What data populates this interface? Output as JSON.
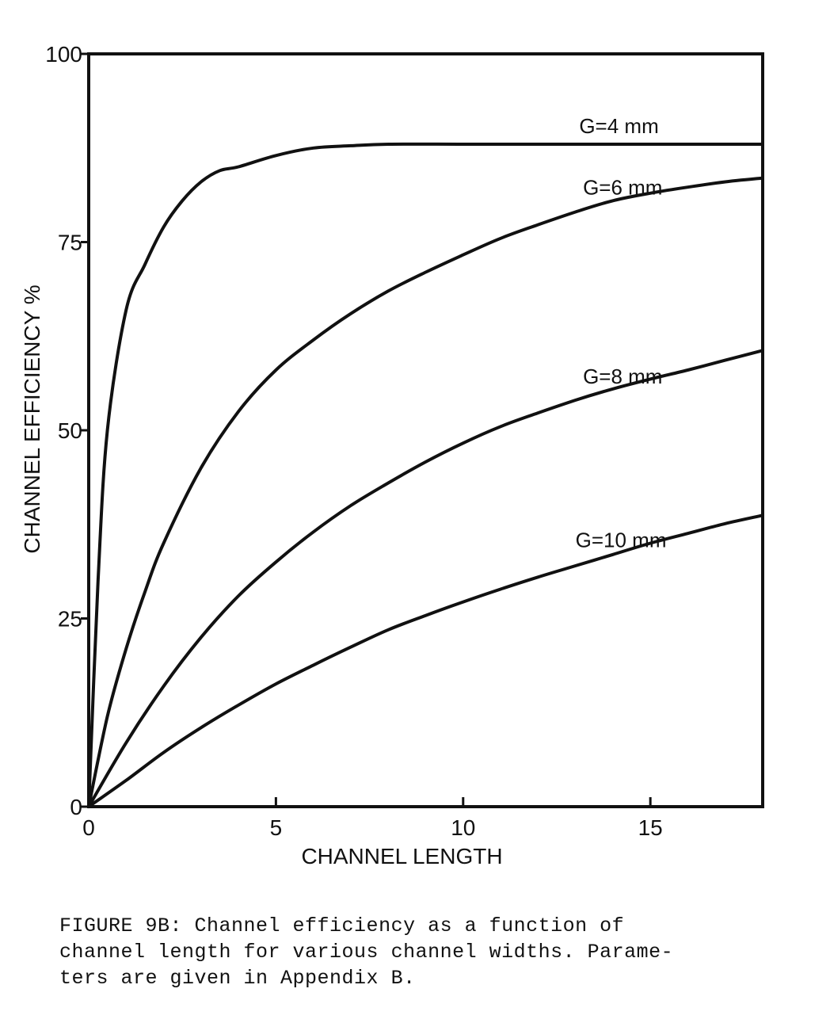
{
  "chart_data": {
    "type": "line",
    "xlabel": "CHANNEL LENGTH",
    "ylabel": "CHANNEL EFFICIENCY %",
    "xlim": [
      0,
      18
    ],
    "ylim": [
      0,
      100
    ],
    "x_ticks": [
      "0",
      "5",
      "10",
      "15"
    ],
    "x_tick_values": [
      0,
      5,
      10,
      15
    ],
    "y_ticks": [
      "0",
      "25",
      "50",
      "75",
      "100"
    ],
    "y_tick_values": [
      0,
      25,
      50,
      75,
      100
    ],
    "grid": false,
    "series": [
      {
        "name": "G=4 mm",
        "x": [
          0,
          0.25,
          0.5,
          1,
          1.5,
          2,
          2.5,
          3,
          3.5,
          4,
          5,
          6,
          7,
          8,
          10,
          12,
          14,
          16,
          18
        ],
        "values": [
          0,
          30,
          50,
          66,
          72,
          77,
          80.5,
          83,
          84.5,
          85,
          86.5,
          87.5,
          87.8,
          88,
          88,
          88,
          88,
          88,
          88
        ]
      },
      {
        "name": "G=6 mm",
        "x": [
          0,
          0.5,
          1,
          1.5,
          2,
          3,
          4,
          5,
          6,
          7,
          8,
          9,
          10,
          11,
          12,
          13,
          14,
          15,
          16,
          17,
          18
        ],
        "values": [
          0,
          12,
          21,
          28.5,
          35,
          45,
          52.5,
          58,
          62,
          65.5,
          68.5,
          71,
          73.3,
          75.5,
          77.3,
          79,
          80.5,
          81.5,
          82.3,
          83,
          83.5
        ]
      },
      {
        "name": "G=8 mm",
        "x": [
          0,
          1,
          2,
          3,
          4,
          5,
          6,
          7,
          8,
          9,
          10,
          11,
          12,
          13,
          14,
          15,
          16,
          17,
          18
        ],
        "values": [
          0,
          8.5,
          16,
          22.5,
          28,
          32.5,
          36.5,
          40,
          43,
          45.8,
          48.3,
          50.5,
          52.3,
          54,
          55.5,
          56.8,
          58,
          59.3,
          60.6
        ]
      },
      {
        "name": "G=10 mm",
        "x": [
          0,
          1,
          2,
          3,
          4,
          5,
          6,
          7,
          8,
          9,
          10,
          11,
          12,
          13,
          14,
          15,
          16,
          17,
          18
        ],
        "values": [
          0,
          3.5,
          7.2,
          10.5,
          13.5,
          16.3,
          18.8,
          21.2,
          23.5,
          25.4,
          27.2,
          28.9,
          30.5,
          32,
          33.5,
          35,
          36.3,
          37.6,
          38.7
        ]
      }
    ],
    "series_labels": [
      {
        "text": "G=4 mm",
        "x": 13.1,
        "y": 89.5
      },
      {
        "text": "G=6 mm",
        "x": 13.2,
        "y": 81.3
      },
      {
        "text": "G=8 mm",
        "x": 13.2,
        "y": 56.2
      },
      {
        "text": "G=10 mm",
        "x": 13.0,
        "y": 34.5
      }
    ]
  },
  "caption": "FIGURE 9B: Channel efficiency as a function of\nchannel length for various channel widths. Parame-\nters are given in Appendix B."
}
